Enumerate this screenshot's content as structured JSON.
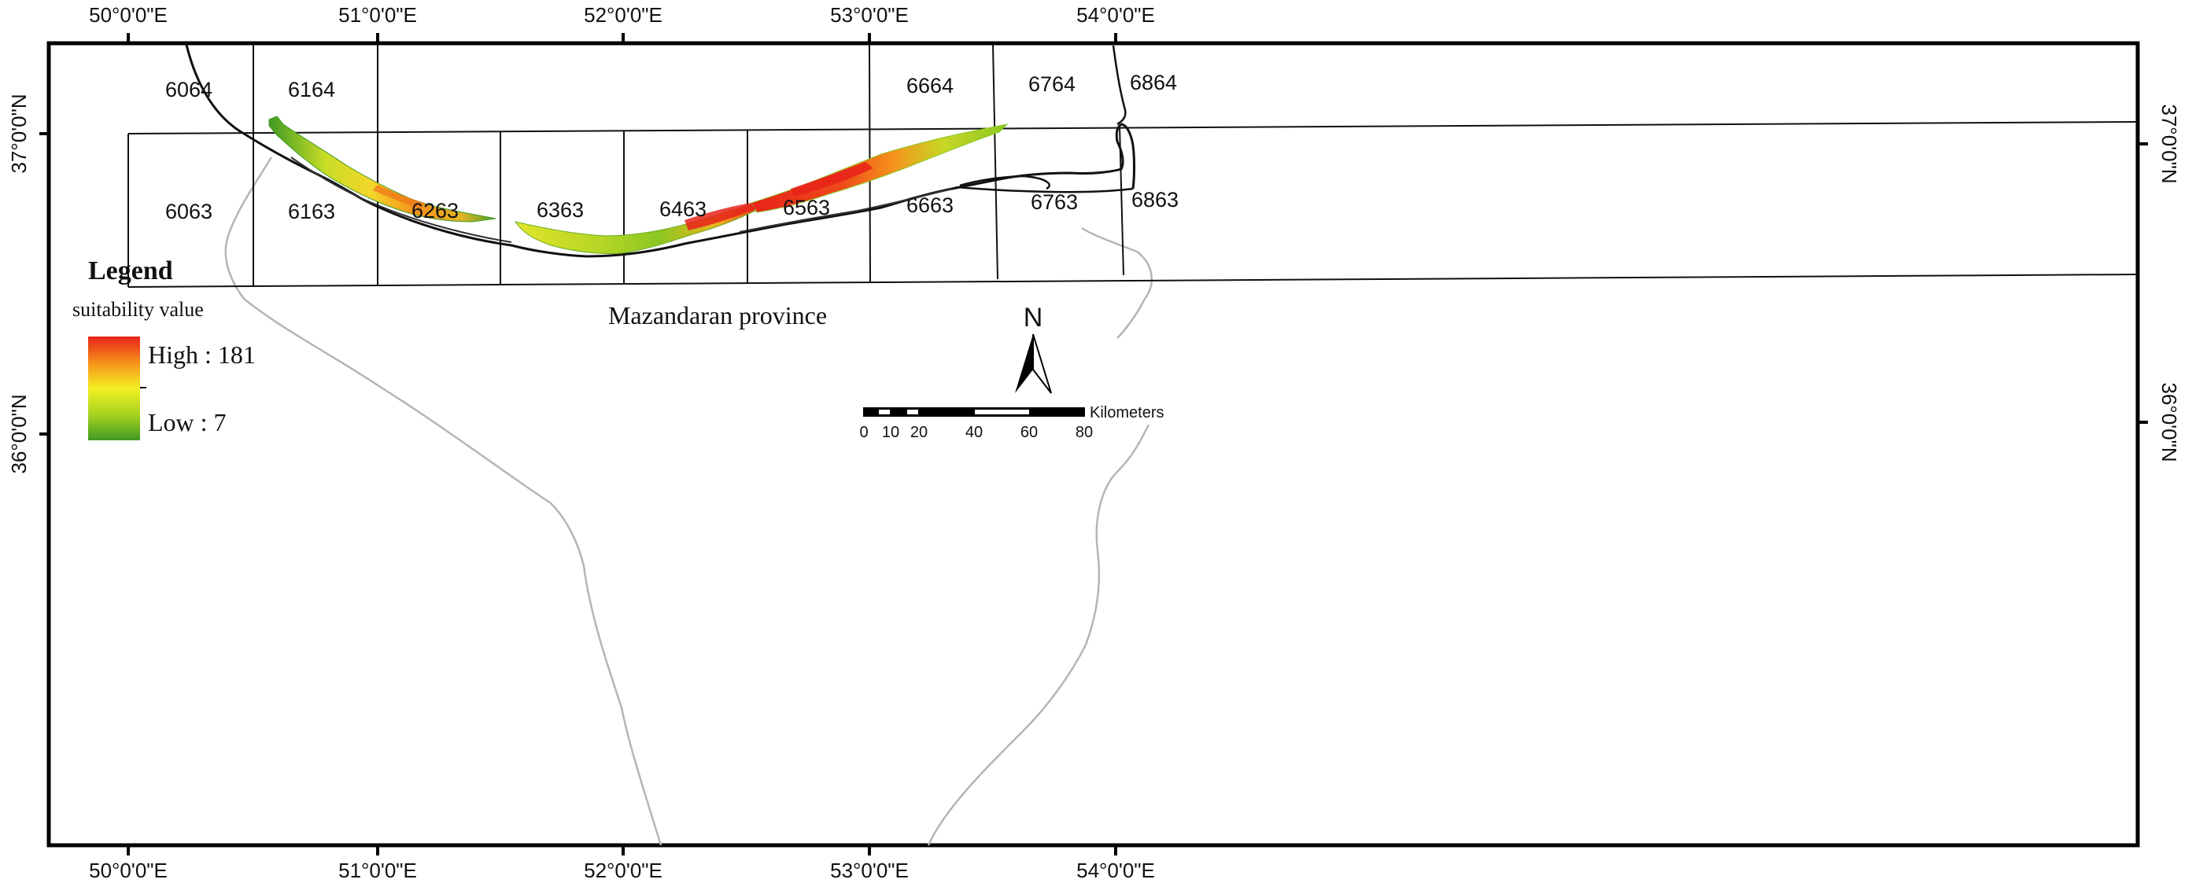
{
  "map": {
    "top_labels": [
      "50°0'0\"E",
      "51°0'0\"E",
      "52°0'0\"E",
      "53°0'0\"E",
      "54°0'0\"E"
    ],
    "bottom_labels": [
      "50°0'0\"E",
      "51°0'0\"E",
      "52°0'0\"E",
      "53°0'0\"E",
      "54°0'0\"E"
    ],
    "left_labels": [
      "37°0'0\"N",
      "36°0'0\"N"
    ],
    "right_labels": [
      "37°0'0\"N",
      "36°0'0\"N"
    ],
    "tile_labels": [
      "6064",
      "6164",
      "6664",
      "6764",
      "6864",
      "6063",
      "6163",
      "6263",
      "6363",
      "6463",
      "6563",
      "6663",
      "6763",
      "6863"
    ],
    "province_label": "Mazandaran province",
    "north_label": "N",
    "colors": {
      "high": "#e8221a",
      "mid_high": "#f5901a",
      "mid": "#f3f024",
      "mid_low": "#a8d320",
      "low": "#3f9a23",
      "province_boundary": "#b5b5b5",
      "coast": "#111111"
    }
  },
  "legend": {
    "title": "Legend",
    "subtitle": "suitability value",
    "high_label": "High : 181",
    "low_label": "Low : 7"
  },
  "scale_bar": {
    "unit_label": "Kilometers",
    "ticks": [
      "0",
      "10",
      "20",
      "40",
      "60",
      "80"
    ]
  }
}
